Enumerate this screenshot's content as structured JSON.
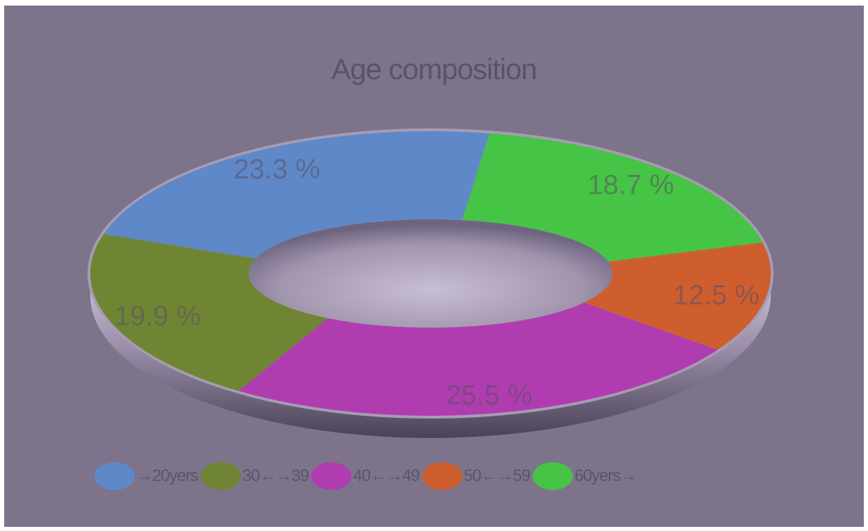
{
  "colors": {
    "background": "#7d748b",
    "rim": "#8e8299",
    "hole": "#a89db4"
  },
  "chart_data": {
    "type": "pie",
    "title": "Age composition",
    "slices": [
      {
        "label": "→20yers",
        "value": 23.3,
        "display": "23.3 %",
        "color": "#5f88c8"
      },
      {
        "label": "30←→39",
        "value": 19.9,
        "display": "19.9 %",
        "color": "#6f8534"
      },
      {
        "label": "40←→49",
        "value": 25.5,
        "display": "25.5 %",
        "color": "#b03db0"
      },
      {
        "label": "50←→59",
        "value": 12.5,
        "display": "12.5 %",
        "color": "#cf5e2e"
      },
      {
        "label": "60yers→",
        "value": 18.7,
        "display": "18.7 %",
        "color": "#46c446"
      }
    ],
    "legend_position": "bottom",
    "style": "3d-donut"
  }
}
